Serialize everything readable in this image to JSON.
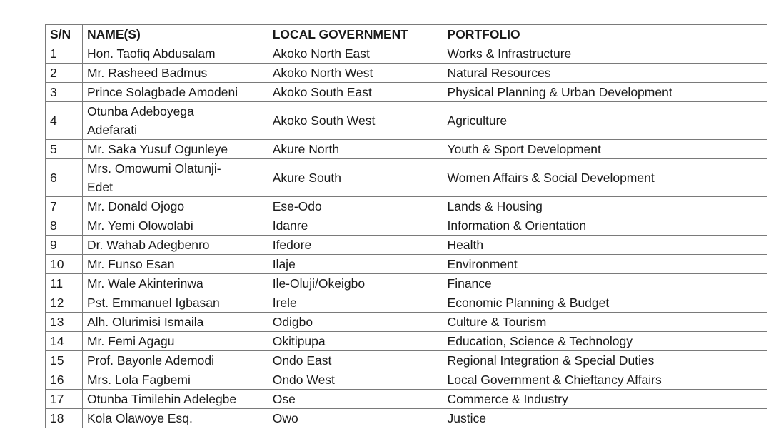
{
  "headers": {
    "sn": "S/N",
    "name": "NAME(S)",
    "lg": "LOCAL GOVERNMENT",
    "portfolio": "PORTFOLIO"
  },
  "rows": [
    {
      "sn": "1",
      "name": "Hon. Taofiq Abdusalam",
      "lg": "Akoko North East",
      "portfolio": "Works & Infrastructure"
    },
    {
      "sn": "2",
      "name": "Mr. Rasheed Badmus",
      "lg": "Akoko North West",
      "portfolio": "Natural Resources"
    },
    {
      "sn": "3",
      "name": "Prince Solagbade Amodeni",
      "lg": "Akoko South East",
      "portfolio": "Physical Planning & Urban Development"
    },
    {
      "sn": "4",
      "name": "Otunba Adeboyega Adefarati",
      "lg": "Akoko South West",
      "portfolio": "Agriculture"
    },
    {
      "sn": "5",
      "name": "Mr. Saka Yusuf Ogunleye",
      "lg": "Akure North",
      "portfolio": "Youth & Sport Development"
    },
    {
      "sn": "6",
      "name": "Mrs. Omowumi Olatunji-Edet",
      "lg": "Akure South",
      "portfolio": "Women Affairs & Social Development"
    },
    {
      "sn": "7",
      "name": "Mr. Donald Ojogo",
      "lg": "Ese-Odo",
      "portfolio": "Lands & Housing"
    },
    {
      "sn": "8",
      "name": "Mr. Yemi Olowolabi",
      "lg": "Idanre",
      "portfolio": "Information & Orientation"
    },
    {
      "sn": "9",
      "name": "Dr. Wahab Adegbenro",
      "lg": "Ifedore",
      "portfolio": "Health"
    },
    {
      "sn": "10",
      "name": "Mr. Funso Esan",
      "lg": "Ilaje",
      "portfolio": "Environment"
    },
    {
      "sn": "11",
      "name": "Mr. Wale Akinterinwa",
      "lg": "Ile-Oluji/Okeigbo",
      "portfolio": "Finance"
    },
    {
      "sn": "12",
      "name": "Pst. Emmanuel Igbasan",
      "lg": "Irele",
      "portfolio": "Economic Planning & Budget"
    },
    {
      "sn": "13",
      "name": "Alh. Olurimisi Ismaila",
      "lg": "Odigbo",
      "portfolio": "Culture & Tourism"
    },
    {
      "sn": "14",
      "name": "Mr. Femi Agagu",
      "lg": "Okitipupa",
      "portfolio": "Education, Science & Technology"
    },
    {
      "sn": "15",
      "name": "Prof. Bayonle Ademodi",
      "lg": "Ondo East",
      "portfolio": "Regional Integration & Special Duties"
    },
    {
      "sn": "16",
      "name": "Mrs. Lola Fagbemi",
      "lg": "Ondo West",
      "portfolio": "Local Government & Chieftancy Affairs"
    },
    {
      "sn": "17",
      "name": "Otunba Timilehin Adelegbe",
      "lg": "Ose",
      "portfolio": "Commerce & Industry"
    },
    {
      "sn": "18",
      "name": "Kola Olawoye Esq.",
      "lg": "Owo",
      "portfolio": "Justice"
    }
  ]
}
